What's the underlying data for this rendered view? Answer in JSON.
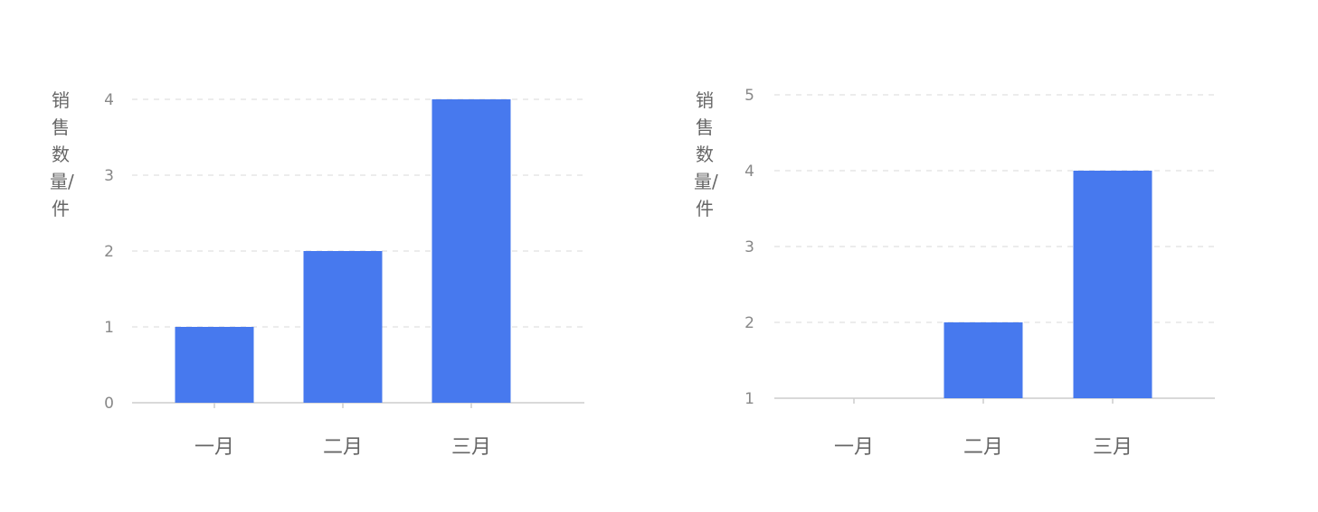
{
  "chart_data": [
    {
      "type": "bar",
      "categories": [
        "一月",
        "二月",
        "三月"
      ],
      "values": [
        1,
        2,
        4
      ],
      "ylabel": "销售数量/件",
      "ylim": [
        0,
        4
      ],
      "yticks": [
        "0",
        "1",
        "2",
        "3",
        "4"
      ],
      "grid": true,
      "bar_color": "#4779EE"
    },
    {
      "type": "bar",
      "categories": [
        "一月",
        "二月",
        "三月"
      ],
      "values": [
        null,
        2,
        4
      ],
      "ylabel": "销售数量/件",
      "ylim": [
        1,
        5
      ],
      "yticks": [
        "1",
        "2",
        "3",
        "4",
        "5"
      ],
      "grid": true,
      "bar_color": "#4779EE"
    }
  ]
}
